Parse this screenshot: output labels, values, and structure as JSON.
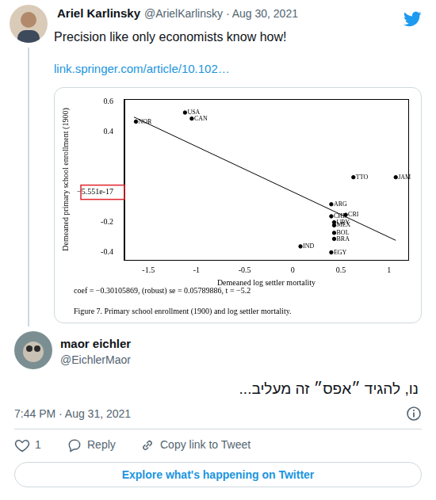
{
  "tweet": {
    "name": "Ariel Karlinsky",
    "byline": "@ArielKarlinsky · Aug 30, 2021",
    "text": "Precision like only economists know how!",
    "link": "link.springer.com/article/10.102…"
  },
  "chart_data": {
    "type": "scatter",
    "x_label": "Demeaned log settler mortality",
    "y_label": "Demeaned primary school enrollment (1900)",
    "note": "coef = −0.30105869, (robust) se = 0.05789886, t = −5.2",
    "caption": "Figure 7.  Primary school enrollment (1900) and log settler mortality.",
    "labels": [
      "NOR",
      "USA",
      "CAN",
      "TTO",
      "JAM",
      "ARG",
      "CRI",
      "CHL",
      "URY",
      "MEX",
      "BOL",
      "BRA",
      "IND",
      "EGY"
    ],
    "x": [
      -1.63,
      -1.12,
      -1.05,
      0.63,
      1.07,
      0.4,
      0.55,
      0.4,
      0.43,
      0.43,
      0.43,
      0.43,
      0.08,
      0.4
    ],
    "values": [
      0.47,
      0.53,
      0.49,
      0.1,
      0.1,
      -0.08,
      -0.15,
      -0.16,
      -0.2,
      -0.22,
      -0.27,
      -0.31,
      -0.36,
      -0.4
    ],
    "color": "#000000",
    "fit_line": {
      "x": [
        -1.65,
        1.07
      ],
      "values": [
        0.5,
        -0.32
      ],
      "color": "#000000"
    },
    "xlim": [
      -1.75,
      1.2
    ],
    "ylim": [
      -0.45,
      0.62
    ],
    "xticks": [
      -1.5,
      -1,
      -0.5,
      0,
      0.5,
      1
    ],
    "yticks": [
      0.6,
      0.4,
      {
        "value": -5.551e-17,
        "label": "−5.551e-17",
        "color": "#e0242b"
      },
      -0.2,
      -0.4
    ],
    "grid": false
  },
  "reply": {
    "name": "maor eichler",
    "handle": "@EichlerMaor",
    "text": "נו, להגיד ״אפס״ זה מעליב...",
    "time": "7:44 PM · Aug 31, 2021",
    "likes": 1,
    "actions": [
      "Reply",
      "Copy link to Tweet"
    ]
  },
  "footer": {
    "button": "Explore what's happening on Twitter"
  }
}
